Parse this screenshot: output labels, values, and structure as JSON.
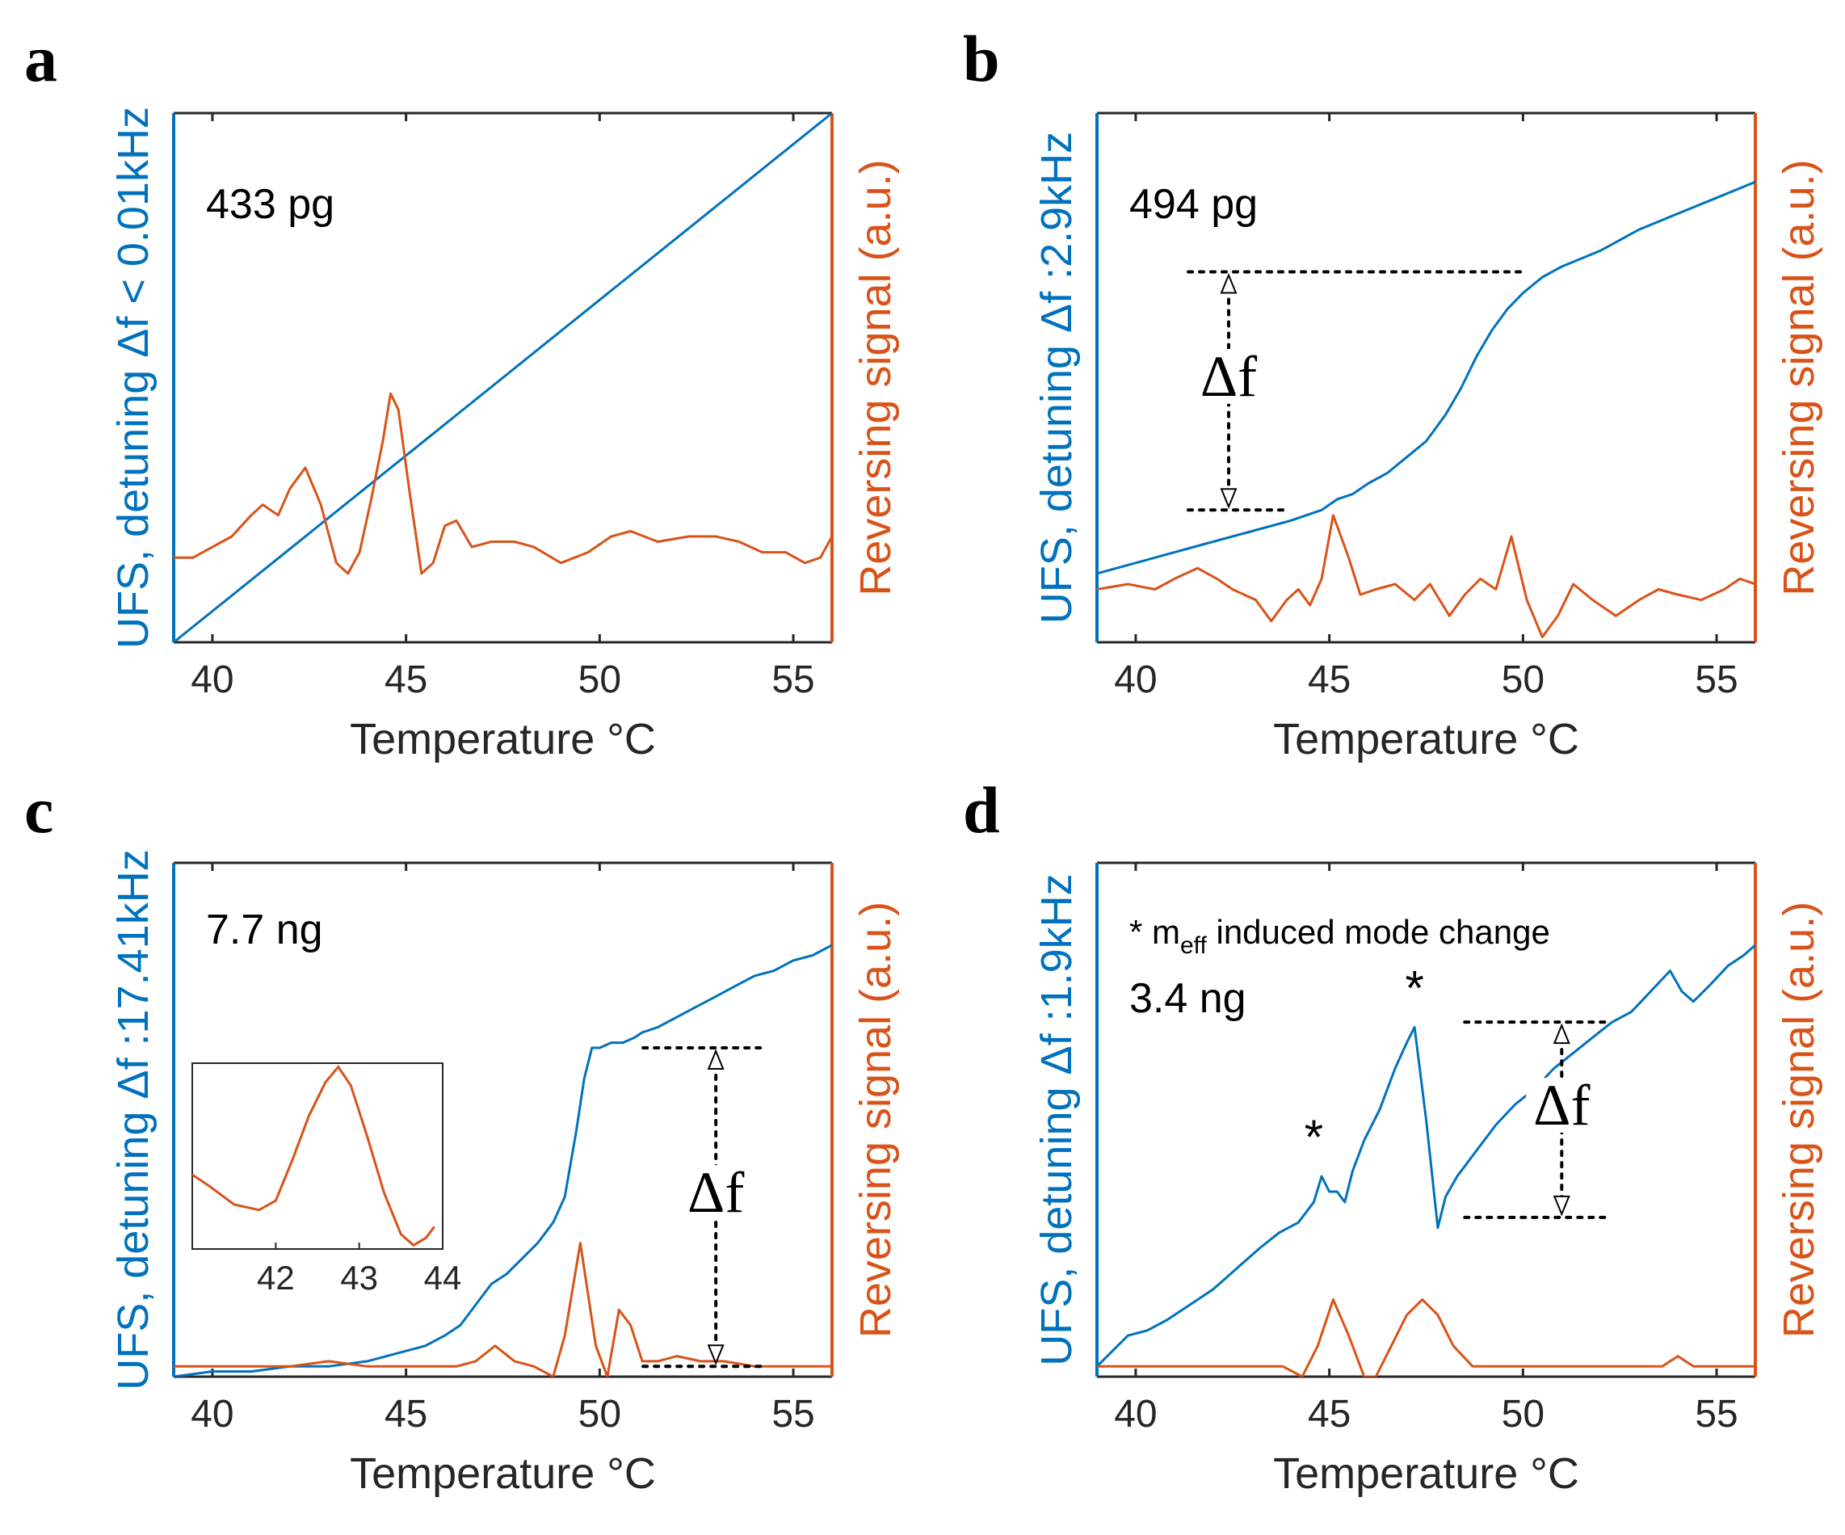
{
  "colors": {
    "ufs": "#0072BD",
    "reversing": "#D95319",
    "axes": "#262626",
    "annot": "#000000"
  },
  "chart_data": [
    {
      "type": "line",
      "panel": "a",
      "label": "433 pg",
      "xlabel": "Temperature °C",
      "ylabel_left": "UFS, detuning Δf < 0.01kHz",
      "ylabel_right": "Reversing signal (a.u.)",
      "xlim": [
        39,
        56
      ],
      "xticks": [
        40,
        45,
        50,
        55
      ],
      "ylim_left": [
        0,
        1
      ],
      "ylim_right": [
        0,
        1
      ],
      "series": [
        {
          "name": "UFS",
          "axis": "left",
          "color": "#0072BD",
          "x": [
            39,
            56
          ],
          "y": [
            0.0,
            1.0
          ]
        },
        {
          "name": "Reversing signal",
          "axis": "right",
          "color": "#D95319",
          "x": [
            39,
            39.5,
            40,
            40.5,
            41,
            41.3,
            41.7,
            42,
            42.4,
            42.8,
            43.2,
            43.5,
            43.8,
            44.1,
            44.4,
            44.6,
            44.8,
            45.1,
            45.4,
            45.7,
            46,
            46.3,
            46.7,
            47.2,
            47.8,
            48.3,
            49,
            49.7,
            50.3,
            50.8,
            51.5,
            52.3,
            53,
            53.6,
            54.2,
            54.8,
            55.3,
            55.7,
            56
          ],
          "y": [
            0.16,
            0.16,
            0.18,
            0.2,
            0.24,
            0.26,
            0.24,
            0.29,
            0.33,
            0.26,
            0.15,
            0.13,
            0.17,
            0.27,
            0.38,
            0.47,
            0.44,
            0.28,
            0.13,
            0.15,
            0.22,
            0.23,
            0.18,
            0.19,
            0.19,
            0.18,
            0.15,
            0.17,
            0.2,
            0.21,
            0.19,
            0.2,
            0.2,
            0.19,
            0.17,
            0.17,
            0.15,
            0.16,
            0.2
          ]
        }
      ]
    },
    {
      "type": "line",
      "panel": "b",
      "label": "494 pg",
      "xlabel": "Temperature °C",
      "ylabel_left": "UFS, detuning Δf :2.9kHz",
      "ylabel_right": "Reversing signal (a.u.)",
      "xlim": [
        39,
        56
      ],
      "xticks": [
        40,
        45,
        50,
        55
      ],
      "ylim_left": [
        0,
        1
      ],
      "ylim_right": [
        0,
        1
      ],
      "delta_label": "Δf",
      "delta_x": 42.4,
      "delta_top": 0.7,
      "delta_bottom": 0.25,
      "series": [
        {
          "name": "UFS",
          "axis": "left",
          "color": "#0072BD",
          "x": [
            39,
            40,
            41,
            42,
            43,
            44,
            44.8,
            45.2,
            45.6,
            46,
            46.5,
            47,
            47.5,
            48,
            48.4,
            48.8,
            49.2,
            49.6,
            50,
            50.5,
            51,
            52,
            53,
            54,
            55,
            56
          ],
          "y": [
            0.13,
            0.15,
            0.17,
            0.19,
            0.21,
            0.23,
            0.25,
            0.27,
            0.28,
            0.3,
            0.32,
            0.35,
            0.38,
            0.43,
            0.48,
            0.54,
            0.59,
            0.63,
            0.66,
            0.69,
            0.71,
            0.74,
            0.78,
            0.81,
            0.84,
            0.87
          ]
        },
        {
          "name": "Reversing signal",
          "axis": "right",
          "color": "#D95319",
          "x": [
            39,
            39.8,
            40.5,
            41,
            41.6,
            42.1,
            42.5,
            43.1,
            43.5,
            43.9,
            44.2,
            44.5,
            44.8,
            45.1,
            45.5,
            45.8,
            46.2,
            46.7,
            47.2,
            47.6,
            48.1,
            48.5,
            48.9,
            49.3,
            49.7,
            50.1,
            50.5,
            50.9,
            51.3,
            51.8,
            52.4,
            53,
            53.5,
            54,
            54.6,
            55.2,
            55.6,
            56
          ],
          "y": [
            0.1,
            0.11,
            0.1,
            0.12,
            0.14,
            0.12,
            0.1,
            0.08,
            0.04,
            0.08,
            0.1,
            0.07,
            0.12,
            0.24,
            0.16,
            0.09,
            0.1,
            0.11,
            0.08,
            0.11,
            0.05,
            0.09,
            0.12,
            0.1,
            0.2,
            0.08,
            0.01,
            0.05,
            0.11,
            0.08,
            0.05,
            0.08,
            0.1,
            0.09,
            0.08,
            0.1,
            0.12,
            0.11
          ]
        }
      ]
    },
    {
      "type": "line",
      "panel": "c",
      "label": "7.7 ng",
      "xlabel": "Temperature °C",
      "ylabel_left": "UFS, detuning Δf :17.41kHz",
      "ylabel_right": "Reversing signal (a.u.)",
      "xlim": [
        39,
        56
      ],
      "xticks": [
        40,
        45,
        50,
        55
      ],
      "ylim_left": [
        0,
        1
      ],
      "ylim_right": [
        0,
        1
      ],
      "delta_label": "Δf",
      "delta_x": 53,
      "delta_top": 0.64,
      "delta_bottom": 0.02,
      "series": [
        {
          "name": "UFS",
          "axis": "left",
          "color": "#0072BD",
          "x": [
            39,
            40,
            41,
            42,
            43,
            44,
            44.5,
            45,
            45.5,
            46,
            46.4,
            46.8,
            47.2,
            47.6,
            48,
            48.4,
            48.8,
            49.1,
            49.4,
            49.6,
            49.8,
            50,
            50.3,
            50.6,
            50.9,
            51.1,
            51.5,
            52,
            52.5,
            53,
            53.5,
            54,
            54.5,
            55,
            55.5,
            56
          ],
          "y": [
            0.0,
            0.01,
            0.01,
            0.02,
            0.02,
            0.03,
            0.04,
            0.05,
            0.06,
            0.08,
            0.1,
            0.14,
            0.18,
            0.2,
            0.23,
            0.26,
            0.3,
            0.35,
            0.48,
            0.58,
            0.64,
            0.64,
            0.65,
            0.65,
            0.66,
            0.67,
            0.68,
            0.7,
            0.72,
            0.74,
            0.76,
            0.78,
            0.79,
            0.81,
            0.82,
            0.84
          ]
        },
        {
          "name": "Reversing signal",
          "axis": "right",
          "color": "#D95319",
          "x": [
            39,
            40,
            41,
            42,
            43,
            44,
            45,
            45.8,
            46.3,
            46.8,
            47.3,
            47.8,
            48.3,
            48.8,
            49.1,
            49.5,
            49.9,
            50.2,
            50.5,
            50.8,
            51.1,
            51.5,
            52,
            52.6,
            53.2,
            54,
            55,
            56
          ],
          "y": [
            0.02,
            0.02,
            0.02,
            0.02,
            0.03,
            0.02,
            0.02,
            0.02,
            0.02,
            0.03,
            0.06,
            0.03,
            0.02,
            0.0,
            0.08,
            0.26,
            0.06,
            0.0,
            0.13,
            0.1,
            0.03,
            0.03,
            0.04,
            0.03,
            0.03,
            0.02,
            0.02,
            0.02
          ]
        }
      ],
      "inset": {
        "xlim": [
          41,
          44
        ],
        "xticks": [
          42,
          43,
          44
        ],
        "series": {
          "name": "Reversing signal (zoom)",
          "color": "#D95319",
          "x": [
            41,
            41.2,
            41.5,
            41.8,
            42.0,
            42.2,
            42.4,
            42.6,
            42.75,
            42.9,
            43.1,
            43.3,
            43.5,
            43.65,
            43.8,
            43.9
          ],
          "y": [
            0.4,
            0.34,
            0.24,
            0.21,
            0.26,
            0.48,
            0.72,
            0.9,
            0.98,
            0.88,
            0.6,
            0.3,
            0.08,
            0.02,
            0.06,
            0.12
          ]
        }
      }
    },
    {
      "type": "line",
      "panel": "d",
      "label": "3.4 ng",
      "note_prefix": "* m",
      "note_sub": "eff",
      "note_suffix": " induced mode change",
      "star_symbol": "*",
      "xlabel": "Temperature °C",
      "ylabel_left": "UFS, detuning Δf :1.9kHz",
      "ylabel_right": "Reversing signal (a.u.)",
      "xlim": [
        39,
        56
      ],
      "xticks": [
        40,
        45,
        50,
        55
      ],
      "ylim_left": [
        0,
        1
      ],
      "ylim_right": [
        0,
        1
      ],
      "delta_label": "Δf",
      "delta_x": 51,
      "delta_top": 0.69,
      "delta_bottom": 0.31,
      "stars_x": [
        44.6,
        47.2
      ],
      "series": [
        {
          "name": "UFS",
          "axis": "left",
          "color": "#0072BD",
          "x": [
            39,
            39.4,
            39.8,
            40.3,
            40.8,
            41.4,
            42,
            42.6,
            43.2,
            43.7,
            44.2,
            44.6,
            44.8,
            45,
            45.2,
            45.4,
            45.6,
            45.9,
            46.3,
            46.7,
            47.0,
            47.2,
            47.5,
            47.8,
            48.0,
            48.3,
            48.8,
            49.3,
            49.8,
            50.3,
            50.8,
            51.3,
            51.8,
            52.3,
            52.8,
            53.3,
            53.8,
            54.1,
            54.4,
            54.8,
            55.3,
            55.7,
            56
          ],
          "y": [
            0.02,
            0.05,
            0.08,
            0.09,
            0.11,
            0.14,
            0.17,
            0.21,
            0.25,
            0.28,
            0.3,
            0.34,
            0.39,
            0.36,
            0.36,
            0.34,
            0.4,
            0.46,
            0.52,
            0.6,
            0.65,
            0.68,
            0.5,
            0.29,
            0.35,
            0.39,
            0.44,
            0.49,
            0.53,
            0.56,
            0.6,
            0.63,
            0.66,
            0.69,
            0.71,
            0.75,
            0.79,
            0.75,
            0.73,
            0.76,
            0.8,
            0.82,
            0.84
          ]
        },
        {
          "name": "Reversing signal",
          "axis": "right",
          "color": "#D95319",
          "x": [
            39,
            40,
            41,
            42,
            43,
            43.8,
            44.3,
            44.7,
            45.1,
            45.5,
            45.9,
            46.2,
            46.6,
            47,
            47.4,
            47.8,
            48.2,
            48.7,
            49.3,
            50,
            51,
            52,
            53,
            53.6,
            54,
            54.4,
            55,
            56
          ],
          "y": [
            0.02,
            0.02,
            0.02,
            0.02,
            0.02,
            0.02,
            0.0,
            0.06,
            0.15,
            0.08,
            0.0,
            0.0,
            0.06,
            0.12,
            0.15,
            0.12,
            0.06,
            0.02,
            0.02,
            0.02,
            0.02,
            0.02,
            0.02,
            0.02,
            0.04,
            0.02,
            0.02,
            0.02
          ]
        }
      ]
    }
  ]
}
